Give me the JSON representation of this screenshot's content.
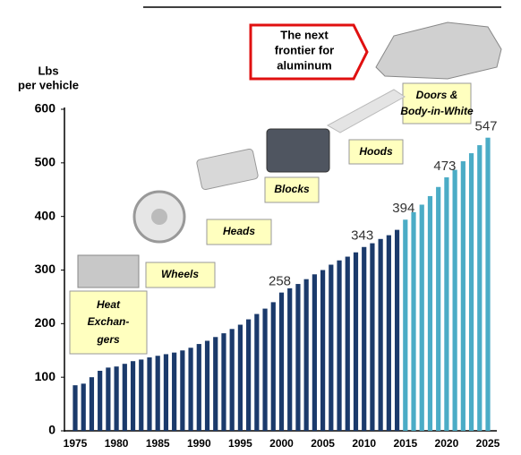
{
  "chart_data": {
    "type": "bar",
    "ylabel": [
      "Lbs",
      "per vehicle"
    ],
    "categories": [
      "1975",
      "1976",
      "1977",
      "1978",
      "1979",
      "1980",
      "1981",
      "1982",
      "1983",
      "1984",
      "1985",
      "1986",
      "1987",
      "1988",
      "1989",
      "1990",
      "1991",
      "1992",
      "1993",
      "1994",
      "1995",
      "1996",
      "1997",
      "1998",
      "1999",
      "2000",
      "2001",
      "2002",
      "2003",
      "2004",
      "2005",
      "2006",
      "2007",
      "2008",
      "2009",
      "2010",
      "2011",
      "2012",
      "2013",
      "2014",
      "2015",
      "2016",
      "2017",
      "2018",
      "2019",
      "2020",
      "2021",
      "2022",
      "2023",
      "2024",
      "2025"
    ],
    "values": [
      85,
      88,
      100,
      112,
      118,
      120,
      125,
      130,
      133,
      137,
      140,
      143,
      146,
      150,
      155,
      162,
      168,
      175,
      182,
      190,
      198,
      208,
      218,
      228,
      240,
      258,
      266,
      274,
      283,
      292,
      300,
      310,
      318,
      325,
      333,
      343,
      350,
      358,
      365,
      375,
      394,
      408,
      422,
      438,
      455,
      473,
      487,
      503,
      518,
      533,
      547
    ],
    "colors": [
      "#1b3a6b",
      "#1b3a6b",
      "#1b3a6b",
      "#1b3a6b",
      "#1b3a6b",
      "#1b3a6b",
      "#1b3a6b",
      "#1b3a6b",
      "#1b3a6b",
      "#1b3a6b",
      "#1b3a6b",
      "#1b3a6b",
      "#1b3a6b",
      "#1b3a6b",
      "#1b3a6b",
      "#1b3a6b",
      "#1b3a6b",
      "#1b3a6b",
      "#1b3a6b",
      "#1b3a6b",
      "#1b3a6b",
      "#1b3a6b",
      "#1b3a6b",
      "#1b3a6b",
      "#1b3a6b",
      "#1b3a6b",
      "#1b3a6b",
      "#1b3a6b",
      "#1b3a6b",
      "#1b3a6b",
      "#1b3a6b",
      "#1b3a6b",
      "#1b3a6b",
      "#1b3a6b",
      "#1b3a6b",
      "#1b3a6b",
      "#1b3a6b",
      "#1b3a6b",
      "#1b3a6b",
      "#1b3a6b",
      "#4bacc6",
      "#4bacc6",
      "#4bacc6",
      "#4bacc6",
      "#4bacc6",
      "#4bacc6",
      "#4bacc6",
      "#4bacc6",
      "#4bacc6",
      "#4bacc6",
      "#4bacc6"
    ],
    "labeled_bars": [
      25,
      35,
      40,
      45,
      50
    ],
    "xtick_labels": [
      0,
      5,
      10,
      15,
      20,
      25,
      30,
      35,
      40,
      45,
      50
    ],
    "ylim": [
      0,
      600
    ],
    "yticks": [
      0,
      100,
      200,
      300,
      400,
      500,
      600
    ],
    "annotations": [
      {
        "lines": [
          "Heat",
          "Exchan-",
          "gers"
        ]
      },
      {
        "lines": [
          "Wheels"
        ]
      },
      {
        "lines": [
          "Heads"
        ]
      },
      {
        "lines": [
          "Blocks"
        ]
      },
      {
        "lines": [
          "Hoods"
        ]
      },
      {
        "lines": [
          "Doors &",
          "Body-in-White"
        ]
      },
      {
        "lines": [
          "The next",
          "frontier for",
          "aluminum"
        ]
      }
    ]
  }
}
